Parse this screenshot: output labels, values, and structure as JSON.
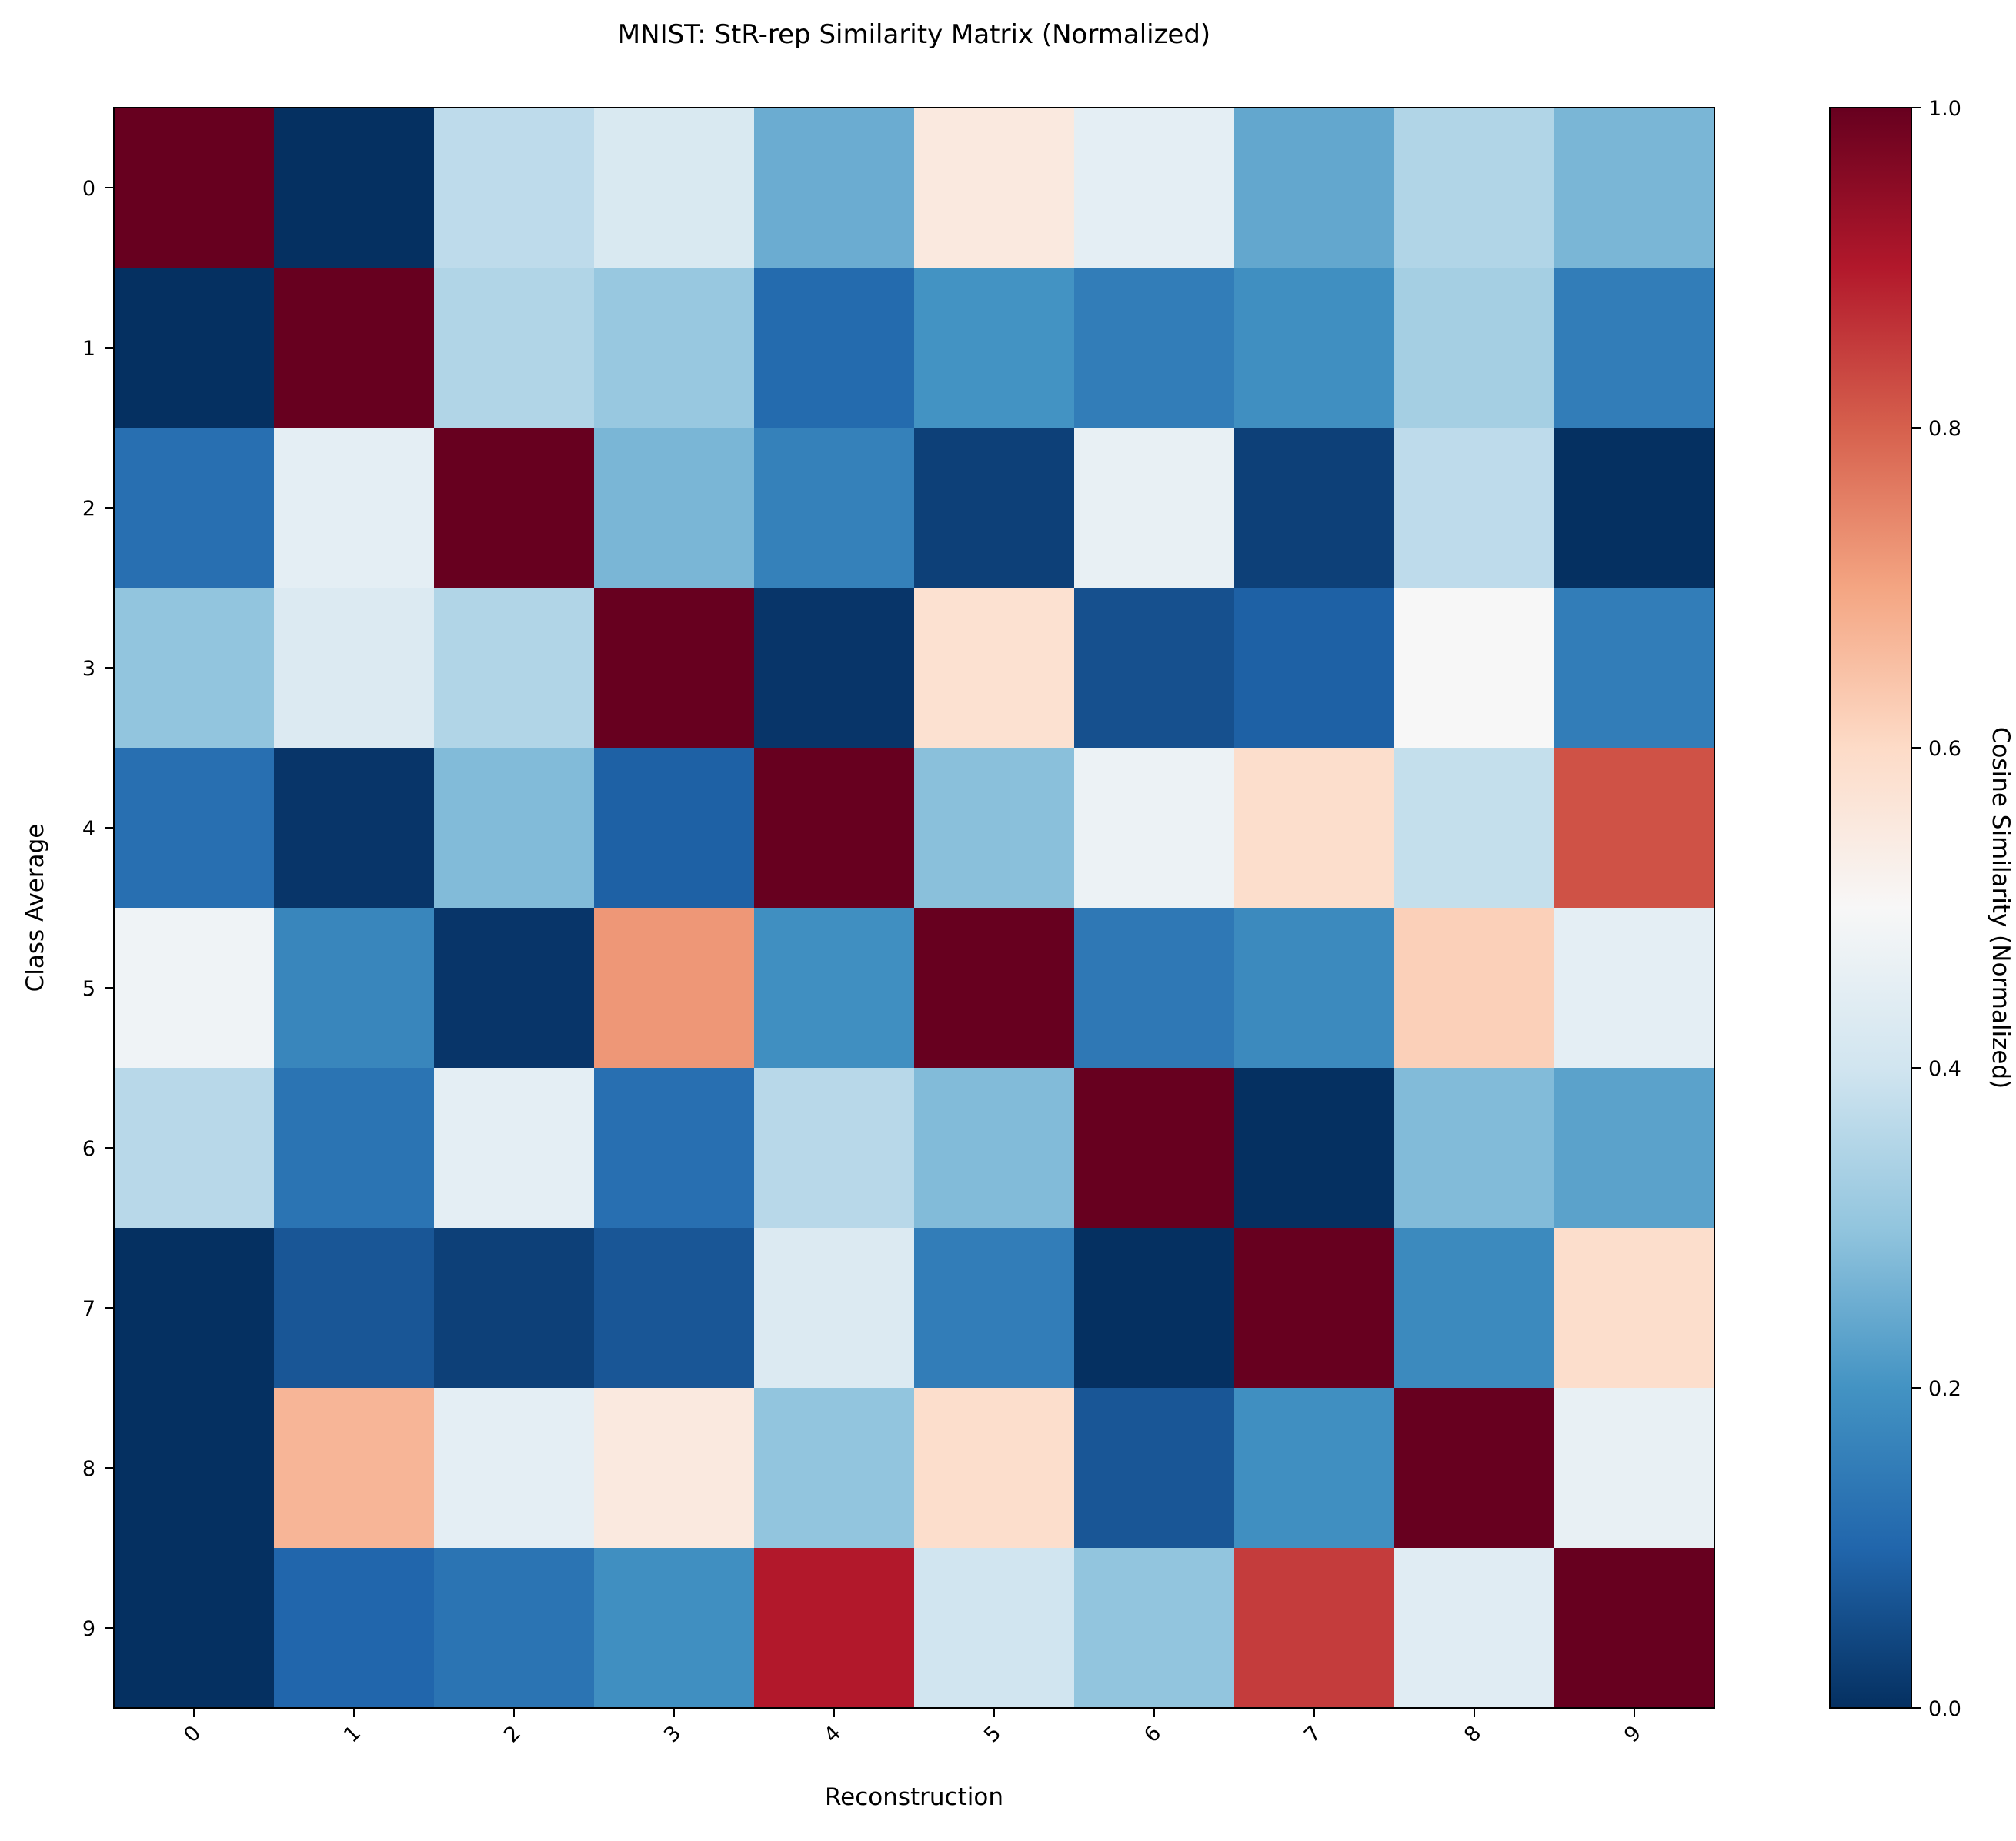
{
  "chart_data": {
    "type": "heatmap",
    "title": "MNIST: StR-rep Similarity Matrix (Normalized)",
    "xlabel": "Reconstruction",
    "ylabel": "Class Average",
    "x_categories": [
      "0",
      "1",
      "2",
      "3",
      "4",
      "5",
      "6",
      "7",
      "8",
      "9"
    ],
    "y_categories": [
      "0",
      "1",
      "2",
      "3",
      "4",
      "5",
      "6",
      "7",
      "8",
      "9"
    ],
    "colormap": "RdBu_r",
    "colorbar": {
      "label": "Cosine Similarity (Normalized)",
      "range": [
        0.0,
        1.0
      ],
      "ticks": [
        "0.0",
        "0.2",
        "0.4",
        "0.6",
        "0.8",
        "1.0"
      ]
    },
    "values": [
      [
        1.0,
        0.0,
        0.37,
        0.42,
        0.25,
        0.55,
        0.45,
        0.24,
        0.35,
        0.27
      ],
      [
        0.0,
        1.0,
        0.35,
        0.31,
        0.11,
        0.2,
        0.15,
        0.19,
        0.33,
        0.15
      ],
      [
        0.12,
        0.45,
        1.0,
        0.27,
        0.16,
        0.03,
        0.46,
        0.03,
        0.37,
        0.0
      ],
      [
        0.3,
        0.43,
        0.35,
        1.0,
        0.01,
        0.58,
        0.06,
        0.09,
        0.5,
        0.15
      ],
      [
        0.12,
        0.01,
        0.28,
        0.09,
        1.0,
        0.29,
        0.47,
        0.59,
        0.38,
        0.82
      ],
      [
        0.48,
        0.17,
        0.01,
        0.72,
        0.19,
        1.0,
        0.14,
        0.18,
        0.62,
        0.45
      ],
      [
        0.36,
        0.13,
        0.45,
        0.12,
        0.36,
        0.28,
        1.0,
        0.0,
        0.28,
        0.23
      ],
      [
        0.0,
        0.07,
        0.03,
        0.07,
        0.43,
        0.15,
        0.0,
        1.0,
        0.18,
        0.59
      ],
      [
        0.0,
        0.67,
        0.45,
        0.55,
        0.3,
        0.59,
        0.07,
        0.19,
        1.0,
        0.46
      ],
      [
        0.0,
        0.1,
        0.13,
        0.19,
        0.9,
        0.4,
        0.3,
        0.85,
        0.44,
        1.0
      ]
    ]
  }
}
